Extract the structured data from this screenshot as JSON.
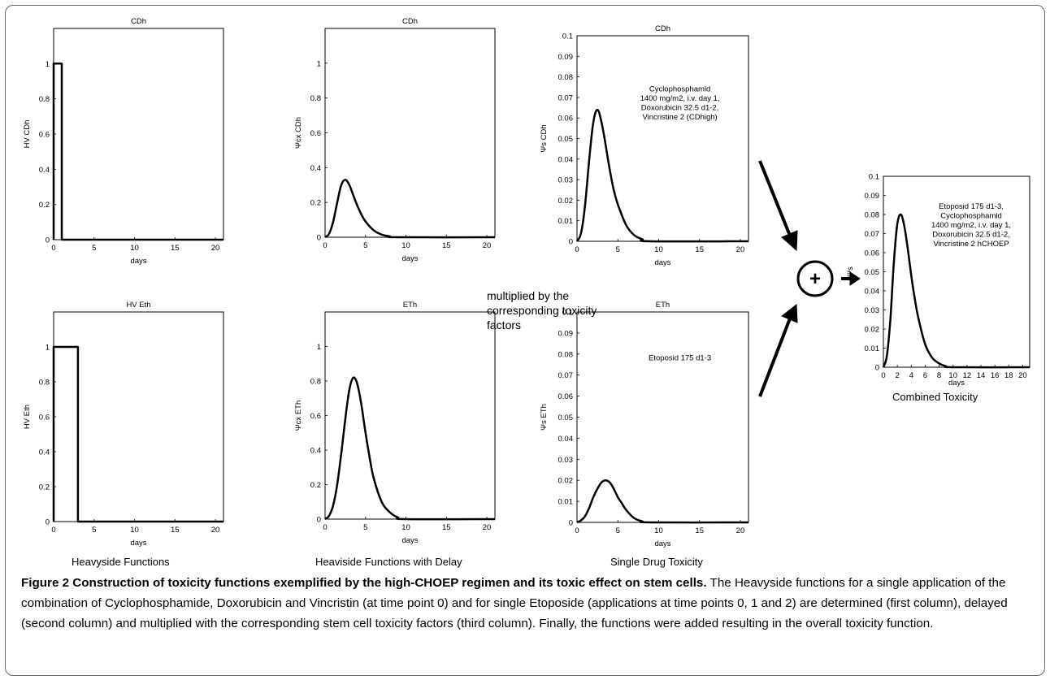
{
  "figure": {
    "column_titles": {
      "heavyside": "Heavyside Functions",
      "delay": "Heaviside Functions with Delay",
      "single": "Single Drug Toxicity",
      "combined": "Combined Toxicity"
    },
    "middle_note": "multiplied by the corresponding toxicity factors",
    "plus_symbol": "+",
    "caption_title": "Figure 2 Construction of toxicity functions exemplified by the high-CHOEP regimen and its toxic effect on stem cells.",
    "caption_body": " The Heavyside functions for a single application of the combination of Cyclophosphamide, Doxorubicin and Vincristin (at time point 0) and for single Etoposide (applications at time points 0, 1 and 2) are determined (first column), delayed (second column) and multiplied with the corresponding stem cell toxicity factors (third column). Finally, the functions were added resulting in the overall toxicity function."
  },
  "chart_data": [
    {
      "id": "hv-cdh",
      "type": "line",
      "title": "CDh",
      "xlabel": "days",
      "ylabel": "HV CDh",
      "xlim": [
        0,
        21
      ],
      "ylim": [
        0,
        1.2
      ],
      "xticks": [
        "0",
        "5",
        "10",
        "15",
        "20"
      ],
      "yticks": [
        "0",
        "0.2",
        "0.4",
        "0.6",
        "0.8",
        "1"
      ],
      "series": [
        {
          "x": [
            0,
            0,
            1,
            1,
            21
          ],
          "y": [
            0,
            1,
            1,
            0,
            0
          ]
        }
      ]
    },
    {
      "id": "delay-cdh",
      "type": "line",
      "title": "CDh",
      "xlabel": "days",
      "ylabel": "Ψcx CDh",
      "xlim": [
        0,
        21
      ],
      "ylim": [
        0,
        1.2
      ],
      "xticks": [
        "0",
        "5",
        "10",
        "15",
        "20"
      ],
      "yticks": [
        "0",
        "0.2",
        "0.4",
        "0.6",
        "0.8",
        "1"
      ],
      "series": [
        {
          "x": [
            0,
            0.5,
            1,
            1.5,
            2,
            2.5,
            3,
            3.5,
            4,
            4.5,
            5,
            6,
            7,
            8,
            9,
            21
          ],
          "y": [
            0,
            0.02,
            0.09,
            0.2,
            0.3,
            0.33,
            0.3,
            0.24,
            0.18,
            0.13,
            0.09,
            0.04,
            0.015,
            0.005,
            0,
            0
          ]
        }
      ]
    },
    {
      "id": "single-cdh",
      "type": "line",
      "title": "CDh",
      "xlabel": "days",
      "ylabel": "Ψs CDh",
      "xlim": [
        0,
        21
      ],
      "ylim": [
        0,
        0.1
      ],
      "xticks": [
        "0",
        "5",
        "10",
        "15",
        "20"
      ],
      "yticks": [
        "0",
        "0.01",
        "0.02",
        "0.03",
        "0.04",
        "0.05",
        "0.06",
        "0.07",
        "0.08",
        "0.09",
        "0.1"
      ],
      "annotation": "Cyclophosphamid\n1400 mg/m2, i.v. day 1,\nDoxorubicin 32.5 d1-2,\nVincristine 2 (CDhigh)",
      "series": [
        {
          "x": [
            0,
            0.5,
            1,
            1.5,
            2,
            2.5,
            3,
            3.5,
            4,
            4.5,
            5,
            6,
            7,
            8,
            9,
            21
          ],
          "y": [
            0,
            0.004,
            0.018,
            0.04,
            0.058,
            0.064,
            0.058,
            0.047,
            0.035,
            0.025,
            0.018,
            0.008,
            0.003,
            0.001,
            0,
            0
          ]
        }
      ]
    },
    {
      "id": "hv-eth",
      "type": "line",
      "title": "HV Eth",
      "xlabel": "days",
      "ylabel": "HV Eth",
      "xlim": [
        0,
        21
      ],
      "ylim": [
        0,
        1.2
      ],
      "xticks": [
        "0",
        "5",
        "10",
        "15",
        "20"
      ],
      "yticks": [
        "0",
        "0.2",
        "0.4",
        "0.6",
        "0.8",
        "1"
      ],
      "series": [
        {
          "x": [
            0,
            0,
            3,
            3,
            21
          ],
          "y": [
            0,
            1,
            1,
            0,
            0
          ]
        }
      ]
    },
    {
      "id": "delay-eth",
      "type": "line",
      "title": "ETh",
      "xlabel": "days",
      "ylabel": "Ψcx ETh",
      "xlim": [
        0,
        21
      ],
      "ylim": [
        0,
        1.2
      ],
      "xticks": [
        "0",
        "5",
        "10",
        "15",
        "20"
      ],
      "yticks": [
        "0",
        "0.2",
        "0.4",
        "0.6",
        "0.8",
        "1"
      ],
      "series": [
        {
          "x": [
            0,
            0.5,
            1,
            1.5,
            2,
            2.5,
            3,
            3.5,
            4,
            4.5,
            5,
            5.5,
            6,
            7,
            8,
            9,
            10,
            21
          ],
          "y": [
            0,
            0.02,
            0.08,
            0.2,
            0.38,
            0.58,
            0.75,
            0.82,
            0.78,
            0.66,
            0.5,
            0.36,
            0.24,
            0.1,
            0.04,
            0.01,
            0,
            0
          ]
        }
      ]
    },
    {
      "id": "single-eth",
      "type": "line",
      "title": "ETh",
      "xlabel": "days",
      "ylabel": "Ψs ETh",
      "xlim": [
        0,
        21
      ],
      "ylim": [
        0,
        0.1
      ],
      "xticks": [
        "0",
        "5",
        "10",
        "15",
        "20"
      ],
      "yticks": [
        "0",
        "0.01",
        "0.02",
        "0.03",
        "0.04",
        "0.05",
        "0.06",
        "0.07",
        "0.08",
        "0.09",
        "0.1"
      ],
      "annotation": "Etoposid 175 d1-3",
      "series": [
        {
          "x": [
            0,
            0.5,
            1,
            1.5,
            2,
            2.5,
            3,
            3.5,
            4,
            4.5,
            5,
            5.5,
            6,
            7,
            8,
            9,
            21
          ],
          "y": [
            0,
            0.001,
            0.003,
            0.007,
            0.012,
            0.016,
            0.019,
            0.02,
            0.019,
            0.016,
            0.012,
            0.009,
            0.006,
            0.002,
            0.0005,
            0,
            0
          ]
        }
      ]
    },
    {
      "id": "combined",
      "type": "line",
      "title": "",
      "xlabel": "days",
      "ylabel": "Ψs",
      "xlim": [
        0,
        21
      ],
      "ylim": [
        0,
        0.1
      ],
      "xticks": [
        "0",
        "2",
        "4",
        "6",
        "8",
        "10",
        "12",
        "14",
        "16",
        "18",
        "20"
      ],
      "yticks": [
        "0",
        "0.01",
        "0.02",
        "0.03",
        "0.04",
        "0.05",
        "0.06",
        "0.07",
        "0.08",
        "0.09",
        "0.1"
      ],
      "annotation": "Etoposid 175 d1-3,\nCyclophosphamid\n1400 mg/m2, i.v. day 1,\nDoxorubicin 32.5 d1-2,\nVincristine 2 hCHOEP",
      "series": [
        {
          "x": [
            0,
            0.5,
            1,
            1.5,
            2,
            2.5,
            3,
            3.5,
            4,
            4.5,
            5,
            6,
            7,
            8,
            9,
            10,
            21
          ],
          "y": [
            0,
            0.006,
            0.025,
            0.055,
            0.075,
            0.08,
            0.074,
            0.062,
            0.048,
            0.036,
            0.026,
            0.012,
            0.005,
            0.002,
            0.0005,
            0,
            0
          ]
        }
      ]
    }
  ]
}
